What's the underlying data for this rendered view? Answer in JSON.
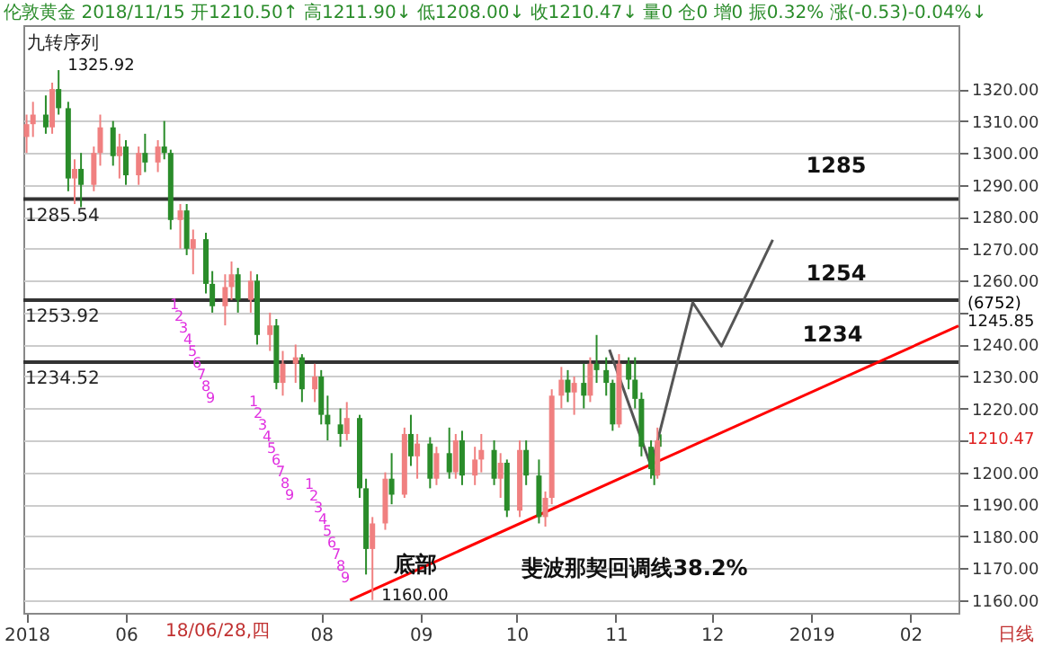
{
  "chart_data": {
    "type": "candlestick",
    "title": "伦敦黄金 2018/11/15 开1210.50↑ 高1211.90↓ 低1208.00↓ 收1210.47↓ 量0 仓0 增0 振0.32% 涨(-0.53)-0.04%↓",
    "x": [
      "2018-05-01",
      "2018-05-03",
      "2018-05-07",
      "2018-05-09",
      "2018-05-11",
      "2018-05-14",
      "2018-05-16",
      "2018-05-18",
      "2018-05-22",
      "2018-05-24",
      "2018-05-28",
      "2018-05-30",
      "2018-06-01",
      "2018-06-05",
      "2018-06-07",
      "2018-06-11",
      "2018-06-13",
      "2018-06-15",
      "2018-06-18",
      "2018-06-20",
      "2018-06-22",
      "2018-06-26",
      "2018-06-28",
      "2018-07-02",
      "2018-07-04",
      "2018-07-06",
      "2018-07-10",
      "2018-07-12",
      "2018-07-16",
      "2018-07-18",
      "2018-07-20",
      "2018-07-24",
      "2018-07-26",
      "2018-07-30",
      "2018-08-01",
      "2018-08-03",
      "2018-08-07",
      "2018-08-09",
      "2018-08-13",
      "2018-08-15",
      "2018-08-17",
      "2018-08-21",
      "2018-08-23",
      "2018-08-27",
      "2018-08-29",
      "2018-08-31",
      "2018-09-04",
      "2018-09-06",
      "2018-09-10",
      "2018-09-12",
      "2018-09-14",
      "2018-09-18",
      "2018-09-20",
      "2018-09-24",
      "2018-09-26",
      "2018-09-28",
      "2018-10-02",
      "2018-10-04",
      "2018-10-08",
      "2018-10-10",
      "2018-10-12",
      "2018-10-15",
      "2018-10-17",
      "2018-10-19",
      "2018-10-22",
      "2018-10-24",
      "2018-10-26",
      "2018-10-29",
      "2018-10-31",
      "2018-11-02",
      "2018-11-05",
      "2018-11-07",
      "2018-11-09",
      "2018-11-12",
      "2018-11-13",
      "2018-11-14",
      "2018-11-15"
    ],
    "ohlc": [
      [
        1305,
        1312,
        1300,
        1309
      ],
      [
        1309,
        1316,
        1305,
        1312
      ],
      [
        1312,
        1318,
        1306,
        1308
      ],
      [
        1308,
        1322,
        1306,
        1320
      ],
      [
        1320,
        1325.92,
        1312,
        1314
      ],
      [
        1314,
        1316,
        1288,
        1292
      ],
      [
        1292,
        1298,
        1284,
        1295
      ],
      [
        1295,
        1300,
        1283,
        1290
      ],
      [
        1290,
        1302,
        1288,
        1300
      ],
      [
        1300,
        1312,
        1296,
        1308
      ],
      [
        1308,
        1310,
        1296,
        1299
      ],
      [
        1299,
        1306,
        1292,
        1302
      ],
      [
        1302,
        1304,
        1290,
        1293
      ],
      [
        1293,
        1302,
        1290,
        1300
      ],
      [
        1300,
        1306,
        1294,
        1297
      ],
      [
        1297,
        1304,
        1294,
        1302
      ],
      [
        1302,
        1310,
        1298,
        1300
      ],
      [
        1300,
        1301,
        1276,
        1279
      ],
      [
        1279,
        1284,
        1270,
        1282
      ],
      [
        1282,
        1284,
        1268,
        1270
      ],
      [
        1270,
        1276,
        1262,
        1273
      ],
      [
        1273,
        1275,
        1256,
        1259
      ],
      [
        1259,
        1263,
        1250,
        1252
      ],
      [
        1252,
        1262,
        1246,
        1258
      ],
      [
        1258,
        1266,
        1254,
        1262
      ],
      [
        1262,
        1264,
        1250,
        1254
      ],
      [
        1254,
        1263,
        1250,
        1260
      ],
      [
        1260,
        1262,
        1240,
        1243
      ],
      [
        1243,
        1250,
        1238,
        1246
      ],
      [
        1246,
        1248,
        1226,
        1228
      ],
      [
        1228,
        1238,
        1224,
        1234
      ],
      [
        1234,
        1240,
        1228,
        1236
      ],
      [
        1236,
        1237,
        1222,
        1226
      ],
      [
        1226,
        1234,
        1222,
        1230
      ],
      [
        1230,
        1232,
        1215,
        1218
      ],
      [
        1218,
        1224,
        1210,
        1215
      ],
      [
        1215,
        1220,
        1208,
        1212
      ],
      [
        1212,
        1222,
        1210,
        1217
      ],
      [
        1217,
        1218,
        1192,
        1195
      ],
      [
        1195,
        1198,
        1168,
        1176
      ],
      [
        1176,
        1186,
        1160,
        1184
      ],
      [
        1184,
        1200,
        1182,
        1198
      ],
      [
        1198,
        1206,
        1190,
        1193
      ],
      [
        1193,
        1214,
        1192,
        1212
      ],
      [
        1212,
        1218,
        1202,
        1205
      ],
      [
        1205,
        1212,
        1198,
        1209
      ],
      [
        1209,
        1211,
        1195,
        1198
      ],
      [
        1198,
        1208,
        1196,
        1206
      ],
      [
        1206,
        1214,
        1198,
        1200
      ],
      [
        1200,
        1212,
        1198,
        1210
      ],
      [
        1210,
        1213,
        1196,
        1199
      ],
      [
        1199,
        1208,
        1196,
        1204
      ],
      [
        1204,
        1212,
        1200,
        1207
      ],
      [
        1207,
        1210,
        1196,
        1198
      ],
      [
        1198,
        1206,
        1192,
        1203
      ],
      [
        1203,
        1204,
        1186,
        1188
      ],
      [
        1188,
        1210,
        1186,
        1207
      ],
      [
        1207,
        1210,
        1196,
        1199
      ],
      [
        1199,
        1204,
        1184,
        1186
      ],
      [
        1186,
        1194,
        1183,
        1192
      ],
      [
        1192,
        1226,
        1190,
        1224
      ],
      [
        1224,
        1233,
        1220,
        1229
      ],
      [
        1229,
        1232,
        1222,
        1225
      ],
      [
        1225,
        1230,
        1218,
        1228
      ],
      [
        1228,
        1234,
        1220,
        1224
      ],
      [
        1224,
        1236,
        1222,
        1234
      ],
      [
        1234,
        1243,
        1228,
        1232
      ],
      [
        1232,
        1236,
        1224,
        1228
      ],
      [
        1228,
        1229,
        1213,
        1215
      ],
      [
        1215,
        1237,
        1214,
        1234
      ],
      [
        1234,
        1236,
        1226,
        1229
      ],
      [
        1229,
        1236,
        1220,
        1223
      ],
      [
        1223,
        1225,
        1205,
        1208
      ],
      [
        1208,
        1210,
        1198,
        1201
      ],
      [
        1201,
        1206,
        1196,
        1199
      ],
      [
        1199,
        1214,
        1198,
        1210
      ],
      [
        1210.5,
        1211.9,
        1208,
        1210.47
      ]
    ],
    "colors": [
      "#f08080",
      "#f08080",
      "#2a8c2a",
      "#f08080",
      "#2a8c2a",
      "#2a8c2a",
      "#f08080",
      "#2a8c2a",
      "#f08080",
      "#f08080",
      "#2a8c2a",
      "#f08080",
      "#2a8c2a",
      "#f08080",
      "#2a8c2a",
      "#f08080",
      "#2a8c2a",
      "#2a8c2a",
      "#f08080",
      "#2a8c2a",
      "#f08080",
      "#2a8c2a",
      "#2a8c2a",
      "#f08080",
      "#f08080",
      "#2a8c2a",
      "#f08080",
      "#2a8c2a",
      "#f08080",
      "#2a8c2a",
      "#f08080",
      "#f08080",
      "#2a8c2a",
      "#f08080",
      "#2a8c2a",
      "#2a8c2a",
      "#2a8c2a",
      "#f08080",
      "#2a8c2a",
      "#2a8c2a",
      "#f08080",
      "#f08080",
      "#2a8c2a",
      "#f08080",
      "#2a8c2a",
      "#f08080",
      "#2a8c2a",
      "#f08080",
      "#2a8c2a",
      "#f08080",
      "#2a8c2a",
      "#f08080",
      "#f08080",
      "#2a8c2a",
      "#f08080",
      "#2a8c2a",
      "#f08080",
      "#2a8c2a",
      "#2a8c2a",
      "#f08080",
      "#f08080",
      "#f08080",
      "#2a8c2a",
      "#f08080",
      "#2a8c2a",
      "#f08080",
      "#2a8c2a",
      "#2a8c2a",
      "#2a8c2a",
      "#f08080",
      "#2a8c2a",
      "#2a8c2a",
      "#2a8c2a",
      "#2a8c2a",
      "#2a8c2a",
      "#f08080",
      "#2a8c2a"
    ],
    "series": [
      {
        "type": "line",
        "color": "#ff0000",
        "x": [
          "2018-08-10",
          "2019-02-16"
        ],
        "values": [
          1160,
          1245.85
        ]
      },
      {
        "type": "line",
        "color": "#555555",
        "x": [
          "2018-10-30",
          "2018-11-12",
          "2018-11-25",
          "2018-12-04",
          "2018-12-20"
        ],
        "values": [
          1238.4,
          1201.9,
          1253.2,
          1239.5,
          1272.8
        ]
      }
    ],
    "xlim": [
      "2018-04-30",
      "2019-02-16"
    ],
    "xticks": [
      {
        "value": "2018-05-01",
        "label": "2018"
      },
      {
        "value": "2018-06-01",
        "label": "06"
      },
      {
        "value": "2018-08-01",
        "label": "08"
      },
      {
        "value": "2018-09-01",
        "label": "09"
      },
      {
        "value": "2018-10-01",
        "label": "10"
      },
      {
        "value": "2018-11-01",
        "label": "11"
      },
      {
        "value": "2018-12-01",
        "label": "12"
      },
      {
        "value": "2019-01-01",
        "label": "2019"
      },
      {
        "value": "2019-02-01",
        "label": "02"
      }
    ],
    "ylim": [
      1156,
      1340
    ],
    "yticks": [
      {
        "value": 1160,
        "label": "1160.00"
      },
      {
        "value": 1170,
        "label": "1170.00"
      },
      {
        "value": 1180,
        "label": "1180.00"
      },
      {
        "value": 1190,
        "label": "1190.00"
      },
      {
        "value": 1200,
        "label": "1200.00"
      },
      {
        "value": 1210,
        "label": null
      },
      {
        "value": 1220,
        "label": "1220.00"
      },
      {
        "value": 1230,
        "label": "1230.00"
      },
      {
        "value": 1240,
        "label": "1240.00"
      },
      {
        "value": 1250,
        "label": null
      },
      {
        "value": 1260,
        "label": "1260.00"
      },
      {
        "value": 1270,
        "label": "1270.00"
      },
      {
        "value": 1280,
        "label": "1280.00"
      },
      {
        "value": 1290,
        "label": "1290.00"
      },
      {
        "value": 1300,
        "label": "1300.00"
      },
      {
        "value": 1310,
        "label": "1310.00"
      },
      {
        "value": 1320,
        "label": "1320.00"
      }
    ],
    "ref_lines": [
      {
        "axis": "y",
        "value": 1285.54,
        "label": "1285.54",
        "color": "#333333"
      },
      {
        "axis": "y",
        "value": 1253.92,
        "label": "1253.92",
        "color": "#333333"
      },
      {
        "axis": "y",
        "value": 1234.52,
        "label": "1234.52",
        "color": "#333333"
      }
    ],
    "annotations": [
      "九转序列",
      "18/06/28,四",
      "(6752)",
      "日线",
      "底部",
      "斐波那契回调线38.2%",
      "1285",
      "1254",
      "1234",
      "1210.47",
      "1",
      "2",
      "3",
      "4",
      "5",
      "6",
      "7",
      "8",
      "9",
      "1",
      "2",
      "3",
      "4",
      "5",
      "6",
      "7",
      "8",
      "9",
      "1",
      "2",
      "3",
      "4",
      "5",
      "6",
      "7",
      "8",
      "9",
      {
        "text": "1325.92",
        "x": "2018-05-11",
        "y": 1325.92
      },
      {
        "text": "1160.00",
        "x": "2018-08-17",
        "y": 1160
      },
      {
        "text": "1245.85",
        "x": "2019-02-16",
        "y": 1245.85
      }
    ],
    "grid": "y",
    "marker": "none",
    "line_style": "solid"
  }
}
